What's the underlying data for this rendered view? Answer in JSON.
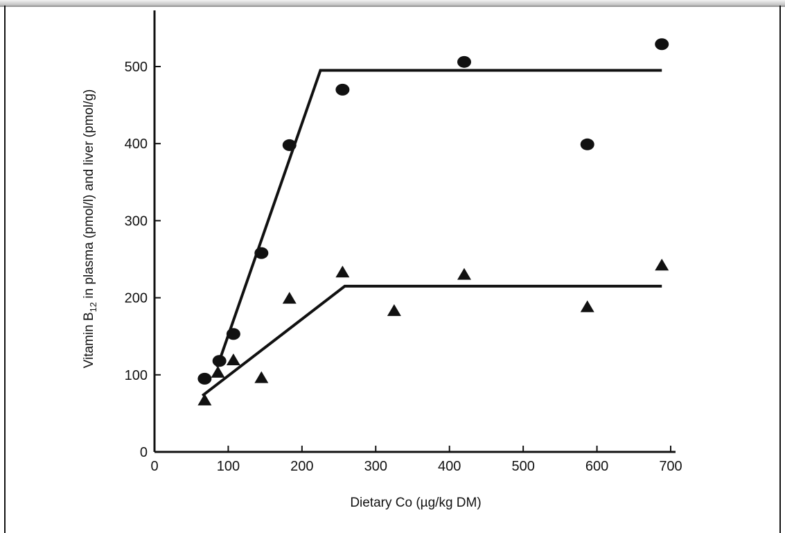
{
  "chart_data": {
    "type": "scatter",
    "title": "",
    "xlabel": "Dietary Co (µg/kg DM)",
    "ylabel": {
      "prefix": "Vitamin B",
      "subscript": "12",
      "suffix": " in plasma (pmol/l) and liver (pmol/g)"
    },
    "xlim": [
      0,
      700
    ],
    "ylim": [
      0,
      600
    ],
    "xticks": [
      "0",
      "100",
      "200",
      "300",
      "400",
      "500",
      "600",
      "700"
    ],
    "yticks": [
      "0",
      "100",
      "200",
      "300",
      "400",
      "500"
    ],
    "grid": false,
    "legend": "none",
    "series": [
      {
        "marker": "circle",
        "color": "#111111",
        "points": [
          {
            "x": 68,
            "y": 95
          },
          {
            "x": 88,
            "y": 118
          },
          {
            "x": 107,
            "y": 153
          },
          {
            "x": 145,
            "y": 258
          },
          {
            "x": 183,
            "y": 398
          },
          {
            "x": 255,
            "y": 470
          },
          {
            "x": 420,
            "y": 506
          },
          {
            "x": 587,
            "y": 399
          },
          {
            "x": 688,
            "y": 529
          }
        ],
        "fit_line": [
          {
            "x": 85,
            "y": 110
          },
          {
            "x": 225,
            "y": 495
          },
          {
            "x": 688,
            "y": 495
          }
        ]
      },
      {
        "marker": "triangle",
        "color": "#111111",
        "points": [
          {
            "x": 68,
            "y": 68
          },
          {
            "x": 86,
            "y": 104
          },
          {
            "x": 107,
            "y": 120
          },
          {
            "x": 145,
            "y": 97
          },
          {
            "x": 183,
            "y": 200
          },
          {
            "x": 255,
            "y": 234
          },
          {
            "x": 325,
            "y": 184
          },
          {
            "x": 420,
            "y": 231
          },
          {
            "x": 587,
            "y": 189
          },
          {
            "x": 688,
            "y": 243
          }
        ],
        "fit_line": [
          {
            "x": 65,
            "y": 73
          },
          {
            "x": 258,
            "y": 215
          },
          {
            "x": 688,
            "y": 215
          }
        ]
      }
    ]
  }
}
